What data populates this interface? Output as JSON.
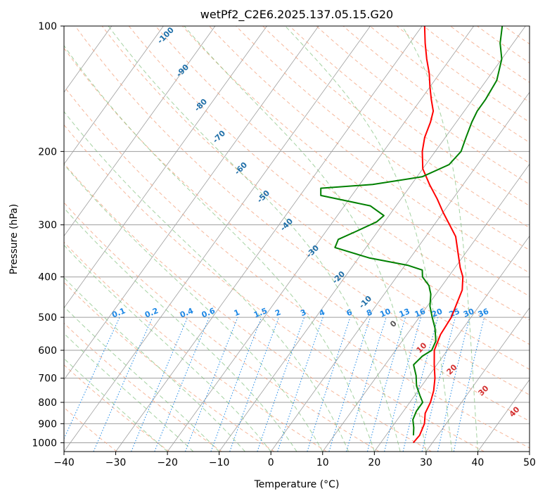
{
  "chart_data": {
    "type": "line",
    "title": "wetPf2_C2E6.2025.137.05.15.G20",
    "xlabel": "Temperature (°C)",
    "ylabel": "Pressure (hPa)",
    "xlim": [
      -40,
      50
    ],
    "ylim": [
      1050,
      100
    ],
    "y_scale": "log",
    "x_ticks": [
      -40,
      -30,
      -20,
      -10,
      0,
      10,
      20,
      30,
      40,
      50
    ],
    "y_ticks": [
      100,
      200,
      300,
      400,
      500,
      600,
      700,
      800,
      900,
      1000
    ],
    "grid": true,
    "series": [
      {
        "color": "#ff0000",
        "points": [
          [
            26.3,
            1000
          ],
          [
            26.5,
            960
          ],
          [
            25.8,
            900
          ],
          [
            24.5,
            850
          ],
          [
            24.0,
            800
          ],
          [
            23.0,
            750
          ],
          [
            21.5,
            700
          ],
          [
            19.5,
            650
          ],
          [
            17.5,
            600
          ],
          [
            16.5,
            550
          ],
          [
            16.2,
            500
          ],
          [
            15.5,
            470
          ],
          [
            14.5,
            430
          ],
          [
            12.8,
            400
          ],
          [
            11.0,
            380
          ],
          [
            8.5,
            350
          ],
          [
            5.8,
            320
          ],
          [
            3.0,
            300
          ],
          [
            0.0,
            280
          ],
          [
            -3.0,
            260
          ],
          [
            -6.5,
            240
          ],
          [
            -10.0,
            220
          ],
          [
            -12.5,
            200
          ],
          [
            -14.0,
            185
          ],
          [
            -15.0,
            170
          ],
          [
            -16.0,
            160
          ],
          [
            -18.0,
            150
          ],
          [
            -20.0,
            140
          ],
          [
            -22.0,
            130
          ],
          [
            -24.5,
            120
          ],
          [
            -27.0,
            110
          ],
          [
            -29.5,
            100
          ]
        ]
      },
      {
        "color": "#008000",
        "points": [
          [
            25.3,
            960
          ],
          [
            24.3,
            920
          ],
          [
            23.0,
            880
          ],
          [
            22.5,
            840
          ],
          [
            22.5,
            800
          ],
          [
            21.0,
            770
          ],
          [
            19.0,
            730
          ],
          [
            17.5,
            690
          ],
          [
            15.5,
            650
          ],
          [
            16.0,
            620
          ],
          [
            17.0,
            600
          ],
          [
            16.5,
            570
          ],
          [
            14.5,
            530
          ],
          [
            12.5,
            500
          ],
          [
            10.5,
            470
          ],
          [
            9.0,
            440
          ],
          [
            7.5,
            420
          ],
          [
            5.0,
            400
          ],
          [
            4.0,
            385
          ],
          [
            0.5,
            375
          ],
          [
            -8.0,
            360
          ],
          [
            -16.0,
            340
          ],
          [
            -16.5,
            325
          ],
          [
            -14.0,
            310
          ],
          [
            -11.5,
            295
          ],
          [
            -11.0,
            285
          ],
          [
            -15.0,
            270
          ],
          [
            -26.0,
            255
          ],
          [
            -27.0,
            245
          ],
          [
            -17.5,
            240
          ],
          [
            -9.0,
            230
          ],
          [
            -5.5,
            215
          ],
          [
            -5.0,
            200
          ],
          [
            -6.0,
            185
          ],
          [
            -7.0,
            170
          ],
          [
            -7.5,
            160
          ],
          [
            -7.5,
            150
          ],
          [
            -8.0,
            135
          ],
          [
            -10.0,
            120
          ],
          [
            -12.5,
            110
          ],
          [
            -14.5,
            100
          ]
        ]
      }
    ],
    "dry_adiabat_labels": [
      "-100",
      "-90",
      "-80",
      "-70",
      "-60",
      "-50",
      "-40",
      "-30",
      "-20",
      "-10",
      "0",
      "10",
      "20",
      "30",
      "40"
    ],
    "mixing_ratio_labels": [
      "0.1",
      "0.2",
      "0.4",
      "0.6",
      "1",
      "1.5",
      "2",
      "3",
      "4",
      "6",
      "8",
      "10",
      "13",
      "16",
      "20",
      "25",
      "30",
      "36"
    ],
    "colors": {
      "temperature": "#ff0000",
      "dewpoint": "#008000",
      "dry_adiabat": "#f4a582",
      "moist_adiabat": "#7fbf7b",
      "mixing_ratio": "#1e88e5",
      "isotherm": "#9e9e9e",
      "isobar": "#9e9e9e"
    }
  }
}
